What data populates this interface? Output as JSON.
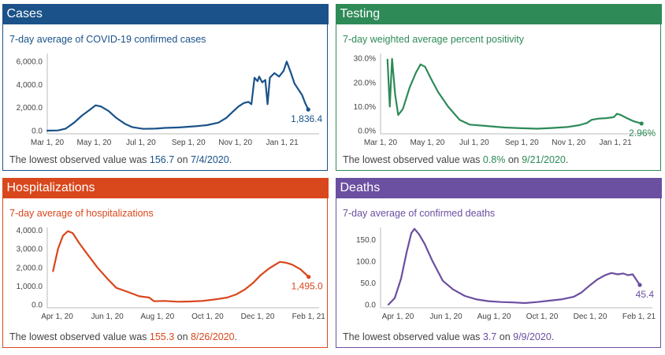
{
  "panels": [
    {
      "key": "cases",
      "title": "Cases",
      "color": "#1a5289",
      "subtitle": "7-day average of COVID-19 confirmed cases",
      "lowest": {
        "prefix": "The lowest observed value was ",
        "value": "156.7",
        "mid": " on ",
        "date": "7/4/2020",
        "suffix": "."
      }
    },
    {
      "key": "testing",
      "title": "Testing",
      "color": "#2e8a57",
      "subtitle": "7-day weighted average percent positivity",
      "lowest": {
        "prefix": "The lowest observed value was ",
        "value": "0.8%",
        "mid": " on ",
        "date": "9/21/2020",
        "suffix": "."
      }
    },
    {
      "key": "hosp",
      "title": "Hospitalizations",
      "color": "#d9471c",
      "subtitle": "7-day average of hospitalizations",
      "lowest": {
        "prefix": "The lowest observed value was ",
        "value": "155.3",
        "mid": " on ",
        "date": "8/26/2020",
        "suffix": "."
      }
    },
    {
      "key": "deaths",
      "title": "Deaths",
      "color": "#6b4fa0",
      "subtitle": "7-day average of confirmed deaths",
      "lowest": {
        "prefix": "The lowest observed value was ",
        "value": "3.7",
        "mid": " on ",
        "date": "9/9/2020",
        "suffix": "."
      }
    }
  ],
  "chart_data": [
    {
      "type": "line",
      "key": "cases",
      "y_ticks": [
        "6,000.0",
        "4,000.0",
        "2,000.0",
        "0.0"
      ],
      "y_tick_values": [
        6000,
        4000,
        2000,
        0
      ],
      "ylim": [
        0,
        6700
      ],
      "x_range": [
        "2020-03-01",
        "2021-02-12"
      ],
      "x_ticks": [
        {
          "label": "Mar 1, 20",
          "date": "2020-03-01"
        },
        {
          "label": "May 1, 20",
          "date": "2020-05-01"
        },
        {
          "label": "Jul 1, 20",
          "date": "2020-07-01"
        },
        {
          "label": "Sep 1, 20",
          "date": "2020-09-01"
        },
        {
          "label": "Nov 1, 20",
          "date": "2020-11-01"
        },
        {
          "label": "Jan 1, 21",
          "date": "2021-01-01"
        }
      ],
      "end_label": "1,836.4",
      "points": [
        [
          "2020-03-01",
          0
        ],
        [
          "2020-03-15",
          20
        ],
        [
          "2020-03-25",
          180
        ],
        [
          "2020-04-05",
          700
        ],
        [
          "2020-04-15",
          1300
        ],
        [
          "2020-04-25",
          1800
        ],
        [
          "2020-05-03",
          2200
        ],
        [
          "2020-05-10",
          2100
        ],
        [
          "2020-05-20",
          1700
        ],
        [
          "2020-05-30",
          1100
        ],
        [
          "2020-06-10",
          600
        ],
        [
          "2020-06-20",
          300
        ],
        [
          "2020-07-04",
          157
        ],
        [
          "2020-07-20",
          180
        ],
        [
          "2020-08-01",
          240
        ],
        [
          "2020-08-20",
          280
        ],
        [
          "2020-09-10",
          380
        ],
        [
          "2020-09-25",
          480
        ],
        [
          "2020-10-10",
          700
        ],
        [
          "2020-10-20",
          1100
        ],
        [
          "2020-10-28",
          1600
        ],
        [
          "2020-11-05",
          2100
        ],
        [
          "2020-11-12",
          2400
        ],
        [
          "2020-11-18",
          2500
        ],
        [
          "2020-11-22",
          2300
        ],
        [
          "2020-11-26",
          4600
        ],
        [
          "2020-11-30",
          4300
        ],
        [
          "2020-12-02",
          4700
        ],
        [
          "2020-12-06",
          4200
        ],
        [
          "2020-12-10",
          4400
        ],
        [
          "2020-12-13",
          2300
        ],
        [
          "2020-12-16",
          4600
        ],
        [
          "2020-12-22",
          5000
        ],
        [
          "2020-12-28",
          4700
        ],
        [
          "2021-01-03",
          5200
        ],
        [
          "2021-01-07",
          6000
        ],
        [
          "2021-01-12",
          5100
        ],
        [
          "2021-01-17",
          4100
        ],
        [
          "2021-01-22",
          3600
        ],
        [
          "2021-01-27",
          3100
        ],
        [
          "2021-01-31",
          2400
        ],
        [
          "2021-02-04",
          1836
        ]
      ]
    },
    {
      "type": "line",
      "key": "testing",
      "y_ticks": [
        "30.0%",
        "20.0%",
        "10.0%",
        "0.0%"
      ],
      "y_tick_values": [
        30,
        20,
        10,
        0
      ],
      "ylim": [
        0,
        32
      ],
      "x_range": [
        "2020-03-01",
        "2021-02-12"
      ],
      "x_ticks": [
        {
          "label": "Mar 1, 20",
          "date": "2020-03-01"
        },
        {
          "label": "May 1, 20",
          "date": "2020-05-01"
        },
        {
          "label": "Jul 1, 20",
          "date": "2020-07-01"
        },
        {
          "label": "Sep 1, 20",
          "date": "2020-09-01"
        },
        {
          "label": "Nov 1, 20",
          "date": "2020-11-01"
        },
        {
          "label": "Jan 1, 21",
          "date": "2021-01-01"
        }
      ],
      "end_label": "2.96%",
      "points": [
        [
          "2020-03-10",
          29.5
        ],
        [
          "2020-03-13",
          10
        ],
        [
          "2020-03-16",
          29.8
        ],
        [
          "2020-03-20",
          15
        ],
        [
          "2020-03-24",
          6.5
        ],
        [
          "2020-03-30",
          9
        ],
        [
          "2020-04-08",
          18
        ],
        [
          "2020-04-16",
          24
        ],
        [
          "2020-04-22",
          27.5
        ],
        [
          "2020-04-28",
          26.5
        ],
        [
          "2020-05-05",
          22
        ],
        [
          "2020-05-15",
          16
        ],
        [
          "2020-05-28",
          10
        ],
        [
          "2020-06-12",
          4.5
        ],
        [
          "2020-06-25",
          2.5
        ],
        [
          "2020-07-15",
          2
        ],
        [
          "2020-08-10",
          1.3
        ],
        [
          "2020-09-01",
          1
        ],
        [
          "2020-09-21",
          0.8
        ],
        [
          "2020-10-10",
          1.1
        ],
        [
          "2020-10-30",
          1.5
        ],
        [
          "2020-11-15",
          2.3
        ],
        [
          "2020-11-25",
          3.2
        ],
        [
          "2020-12-01",
          4.5
        ],
        [
          "2020-12-10",
          5
        ],
        [
          "2020-12-20",
          5.2
        ],
        [
          "2020-12-30",
          5.6
        ],
        [
          "2021-01-03",
          7
        ],
        [
          "2021-01-08",
          6.5
        ],
        [
          "2021-01-16",
          5.2
        ],
        [
          "2021-01-24",
          4
        ],
        [
          "2021-02-04",
          2.96
        ]
      ]
    },
    {
      "type": "line",
      "key": "hosp",
      "y_ticks": [
        "4,000.0",
        "3,000.0",
        "2,000.0",
        "1,000.0",
        "0.0"
      ],
      "y_tick_values": [
        4000,
        3000,
        2000,
        1000,
        0
      ],
      "ylim": [
        0,
        4150
      ],
      "x_range": [
        "2020-03-20",
        "2021-02-08"
      ],
      "x_ticks": [
        {
          "label": "Apr 1, 20",
          "date": "2020-04-01"
        },
        {
          "label": "Jun 1, 20",
          "date": "2020-06-01"
        },
        {
          "label": "Aug 1, 20",
          "date": "2020-08-01"
        },
        {
          "label": "Oct 1, 20",
          "date": "2020-10-01"
        },
        {
          "label": "Dec 1, 20",
          "date": "2020-12-01"
        },
        {
          "label": "Feb 1, 21",
          "date": "2021-02-01"
        }
      ],
      "end_label": "1,495.0",
      "points": [
        [
          "2020-03-27",
          1800
        ],
        [
          "2020-04-02",
          3000
        ],
        [
          "2020-04-08",
          3700
        ],
        [
          "2020-04-14",
          3950
        ],
        [
          "2020-04-20",
          3850
        ],
        [
          "2020-04-28",
          3300
        ],
        [
          "2020-05-08",
          2700
        ],
        [
          "2020-05-20",
          2000
        ],
        [
          "2020-06-01",
          1400
        ],
        [
          "2020-06-12",
          900
        ],
        [
          "2020-06-25",
          700
        ],
        [
          "2020-07-10",
          450
        ],
        [
          "2020-07-22",
          380
        ],
        [
          "2020-07-28",
          180
        ],
        [
          "2020-08-10",
          200
        ],
        [
          "2020-08-26",
          155
        ],
        [
          "2020-09-10",
          170
        ],
        [
          "2020-09-25",
          200
        ],
        [
          "2020-10-10",
          280
        ],
        [
          "2020-10-25",
          380
        ],
        [
          "2020-11-05",
          550
        ],
        [
          "2020-11-15",
          800
        ],
        [
          "2020-11-25",
          1150
        ],
        [
          "2020-12-05",
          1600
        ],
        [
          "2020-12-15",
          1950
        ],
        [
          "2020-12-28",
          2300
        ],
        [
          "2021-01-05",
          2250
        ],
        [
          "2021-01-12",
          2150
        ],
        [
          "2021-01-22",
          1900
        ],
        [
          "2021-02-01",
          1495
        ]
      ]
    },
    {
      "type": "line",
      "key": "deaths",
      "y_ticks": [
        "150.0",
        "100.0",
        "50.0",
        "0.0"
      ],
      "y_tick_values": [
        150,
        100,
        50,
        0
      ],
      "ylim": [
        0,
        178
      ],
      "x_range": [
        "2020-03-10",
        "2021-02-12"
      ],
      "x_ticks": [
        {
          "label": "Apr 1, 20",
          "date": "2020-04-01"
        },
        {
          "label": "Jun 1, 20",
          "date": "2020-06-01"
        },
        {
          "label": "Aug 1, 20",
          "date": "2020-08-01"
        },
        {
          "label": "Oct 1, 20",
          "date": "2020-10-01"
        },
        {
          "label": "Dec 1, 20",
          "date": "2020-12-01"
        },
        {
          "label": "Feb 1, 21",
          "date": "2021-02-01"
        }
      ],
      "end_label": "45.4",
      "points": [
        [
          "2020-03-20",
          0
        ],
        [
          "2020-03-28",
          15
        ],
        [
          "2020-04-05",
          60
        ],
        [
          "2020-04-12",
          120
        ],
        [
          "2020-04-18",
          165
        ],
        [
          "2020-04-22",
          175
        ],
        [
          "2020-04-28",
          162
        ],
        [
          "2020-05-05",
          140
        ],
        [
          "2020-05-15",
          100
        ],
        [
          "2020-05-28",
          55
        ],
        [
          "2020-06-10",
          35
        ],
        [
          "2020-06-25",
          20
        ],
        [
          "2020-07-10",
          12
        ],
        [
          "2020-07-25",
          8
        ],
        [
          "2020-08-10",
          6
        ],
        [
          "2020-08-25",
          5
        ],
        [
          "2020-09-09",
          3.7
        ],
        [
          "2020-09-25",
          6
        ],
        [
          "2020-10-10",
          9
        ],
        [
          "2020-10-25",
          12
        ],
        [
          "2020-11-10",
          18
        ],
        [
          "2020-11-20",
          28
        ],
        [
          "2020-12-01",
          45
        ],
        [
          "2020-12-10",
          58
        ],
        [
          "2020-12-20",
          68
        ],
        [
          "2020-12-28",
          73
        ],
        [
          "2021-01-05",
          70
        ],
        [
          "2021-01-12",
          72
        ],
        [
          "2021-01-18",
          68
        ],
        [
          "2021-01-24",
          70
        ],
        [
          "2021-02-02",
          45.4
        ]
      ]
    }
  ]
}
